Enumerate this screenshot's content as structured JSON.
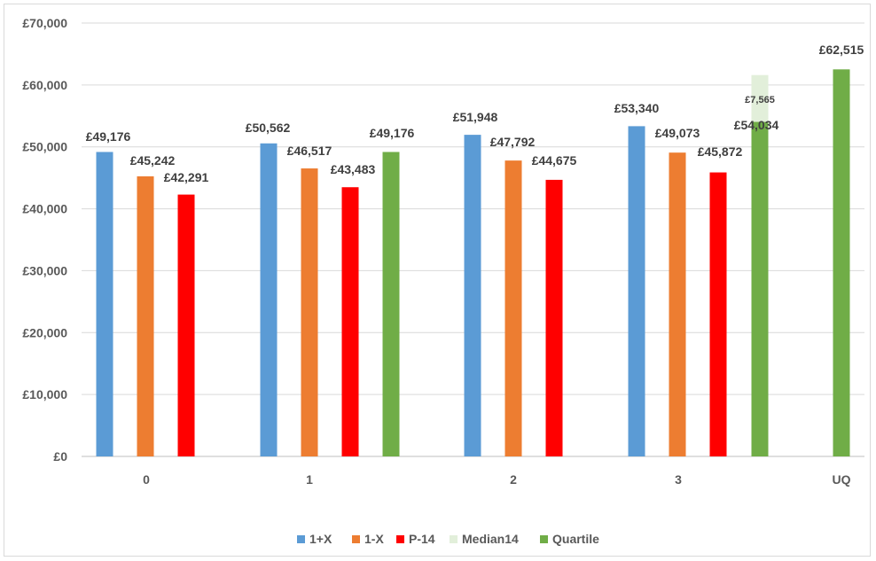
{
  "chart_data": {
    "type": "bar",
    "title": "",
    "xlabel": "",
    "ylabel": "",
    "ylim": [
      0,
      70000
    ],
    "y_ticks": [
      0,
      10000,
      20000,
      30000,
      40000,
      50000,
      60000,
      70000
    ],
    "y_tick_labels": [
      "£0",
      "£10,000",
      "£20,000",
      "£30,000",
      "£40,000",
      "£50,000",
      "£60,000",
      "£70,000"
    ],
    "grid": true,
    "legend_position": "bottom",
    "categories": [
      "0",
      "1",
      "2",
      "3",
      "UQ"
    ],
    "series": [
      {
        "name": "1+X",
        "color": "#5b9bd5",
        "values": [
          49176,
          50562,
          51948,
          53340,
          null
        ],
        "labels": [
          "£49,176",
          "£50,562",
          "£51,948",
          "£53,340",
          ""
        ]
      },
      {
        "name": "1-X",
        "color": "#ed7d31",
        "values": [
          45242,
          46517,
          47792,
          49073,
          null
        ],
        "labels": [
          "£45,242",
          "£46,517",
          "£47,792",
          "£49,073",
          ""
        ]
      },
      {
        "name": "P-14",
        "color": "#ff0000",
        "values": [
          42291,
          43483,
          44675,
          45872,
          null
        ],
        "labels": [
          "£42,291",
          "£43,483",
          "£44,675",
          "£45,872",
          ""
        ]
      },
      {
        "name": "Median14",
        "color": "#e2efda",
        "values": [
          null,
          null,
          null,
          7565,
          null
        ],
        "labels": [
          "",
          "",
          "",
          "£7,565",
          ""
        ]
      },
      {
        "name": "Quartile",
        "color": "#70ad47",
        "values": [
          null,
          49176,
          null,
          54034,
          62515
        ],
        "labels": [
          "",
          "£49,176",
          "",
          "£54,034",
          "£62,515"
        ]
      }
    ]
  }
}
